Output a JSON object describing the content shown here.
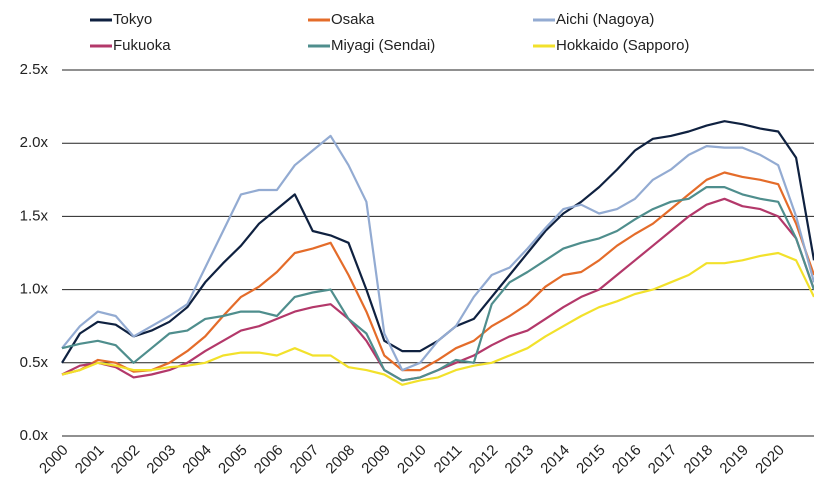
{
  "chart_data": {
    "type": "line",
    "x": [
      2000,
      2000.5,
      2001,
      2001.5,
      2002,
      2002.5,
      2003,
      2003.5,
      2004,
      2004.5,
      2005,
      2005.5,
      2006,
      2006.5,
      2007,
      2007.5,
      2008,
      2008.5,
      2009,
      2009.5,
      2010,
      2010.5,
      2011,
      2011.5,
      2012,
      2012.5,
      2013,
      2013.5,
      2014,
      2014.5,
      2015,
      2015.5,
      2016,
      2016.5,
      2017,
      2017.5,
      2018,
      2018.5,
      2019,
      2019.5,
      2020,
      2020.5,
      2021
    ],
    "series": [
      {
        "name": "Tokyo",
        "color": "#0f2140",
        "values": [
          0.5,
          0.7,
          0.78,
          0.76,
          0.68,
          0.72,
          0.78,
          0.88,
          1.05,
          1.18,
          1.3,
          1.45,
          1.55,
          1.65,
          1.4,
          1.37,
          1.32,
          1.0,
          0.65,
          0.58,
          0.58,
          0.65,
          0.75,
          0.8,
          0.95,
          1.1,
          1.25,
          1.4,
          1.52,
          1.6,
          1.7,
          1.82,
          1.95,
          2.03,
          2.05,
          2.08,
          2.12,
          2.15,
          2.13,
          2.1,
          2.08,
          1.9,
          1.2
        ]
      },
      {
        "name": "Osaka",
        "color": "#e46c2a",
        "values": [
          0.42,
          0.45,
          0.52,
          0.5,
          0.44,
          0.45,
          0.5,
          0.58,
          0.68,
          0.82,
          0.95,
          1.02,
          1.12,
          1.25,
          1.28,
          1.32,
          1.1,
          0.85,
          0.55,
          0.45,
          0.45,
          0.52,
          0.6,
          0.65,
          0.75,
          0.82,
          0.9,
          1.02,
          1.1,
          1.12,
          1.2,
          1.3,
          1.38,
          1.45,
          1.55,
          1.65,
          1.75,
          1.8,
          1.77,
          1.75,
          1.72,
          1.45,
          1.1
        ]
      },
      {
        "name": "Aichi (Nagoya)",
        "color": "#93abd2",
        "values": [
          0.6,
          0.75,
          0.85,
          0.82,
          0.68,
          0.75,
          0.82,
          0.9,
          1.15,
          1.4,
          1.65,
          1.68,
          1.68,
          1.85,
          1.95,
          2.05,
          1.85,
          1.6,
          0.7,
          0.45,
          0.5,
          0.65,
          0.75,
          0.95,
          1.1,
          1.15,
          1.28,
          1.42,
          1.55,
          1.58,
          1.52,
          1.55,
          1.62,
          1.75,
          1.82,
          1.92,
          1.98,
          1.97,
          1.97,
          1.92,
          1.85,
          1.5,
          1.05
        ]
      },
      {
        "name": "Fukuoka",
        "color": "#b3386a",
        "values": [
          0.42,
          0.48,
          0.5,
          0.47,
          0.4,
          0.42,
          0.45,
          0.5,
          0.58,
          0.65,
          0.72,
          0.75,
          0.8,
          0.85,
          0.88,
          0.9,
          0.8,
          0.65,
          0.45,
          0.38,
          0.4,
          0.45,
          0.5,
          0.55,
          0.62,
          0.68,
          0.72,
          0.8,
          0.88,
          0.95,
          1.0,
          1.1,
          1.2,
          1.3,
          1.4,
          1.5,
          1.58,
          1.62,
          1.57,
          1.55,
          1.5,
          1.35,
          1.0
        ]
      },
      {
        "name": "Miyagi (Sendai)",
        "color": "#4f8e8d",
        "values": [
          0.6,
          0.63,
          0.65,
          0.62,
          0.5,
          0.6,
          0.7,
          0.72,
          0.8,
          0.82,
          0.85,
          0.85,
          0.82,
          0.95,
          0.98,
          1.0,
          0.8,
          0.7,
          0.45,
          0.38,
          0.4,
          0.45,
          0.52,
          0.5,
          0.9,
          1.05,
          1.12,
          1.2,
          1.28,
          1.32,
          1.35,
          1.4,
          1.48,
          1.55,
          1.6,
          1.62,
          1.7,
          1.7,
          1.65,
          1.62,
          1.6,
          1.35,
          1.0
        ]
      },
      {
        "name": "Hokkaido (Sapporo)",
        "color": "#f2e12b",
        "values": [
          0.42,
          0.45,
          0.5,
          0.48,
          0.45,
          0.45,
          0.47,
          0.48,
          0.5,
          0.55,
          0.57,
          0.57,
          0.55,
          0.6,
          0.55,
          0.55,
          0.47,
          0.45,
          0.42,
          0.35,
          0.38,
          0.4,
          0.45,
          0.48,
          0.5,
          0.55,
          0.6,
          0.68,
          0.75,
          0.82,
          0.88,
          0.92,
          0.97,
          1.0,
          1.05,
          1.1,
          1.18,
          1.18,
          1.2,
          1.23,
          1.25,
          1.2,
          0.95
        ]
      }
    ],
    "xlim": [
      2000,
      2021
    ],
    "xticks": [
      2000,
      2001,
      2002,
      2003,
      2004,
      2005,
      2006,
      2007,
      2008,
      2009,
      2010,
      2011,
      2012,
      2013,
      2014,
      2015,
      2016,
      2017,
      2018,
      2019,
      2020
    ],
    "ylim": [
      0,
      2.5
    ],
    "yticks": [
      {
        "value": 0,
        "label": "0.0x"
      },
      {
        "value": 0.5,
        "label": "0.5x"
      },
      {
        "value": 1,
        "label": "1.0x"
      },
      {
        "value": 1.5,
        "label": "1.5x"
      },
      {
        "value": 2,
        "label": "2.0x"
      },
      {
        "value": 2.5,
        "label": "2.5x"
      }
    ],
    "grid": true,
    "legend": "top"
  }
}
